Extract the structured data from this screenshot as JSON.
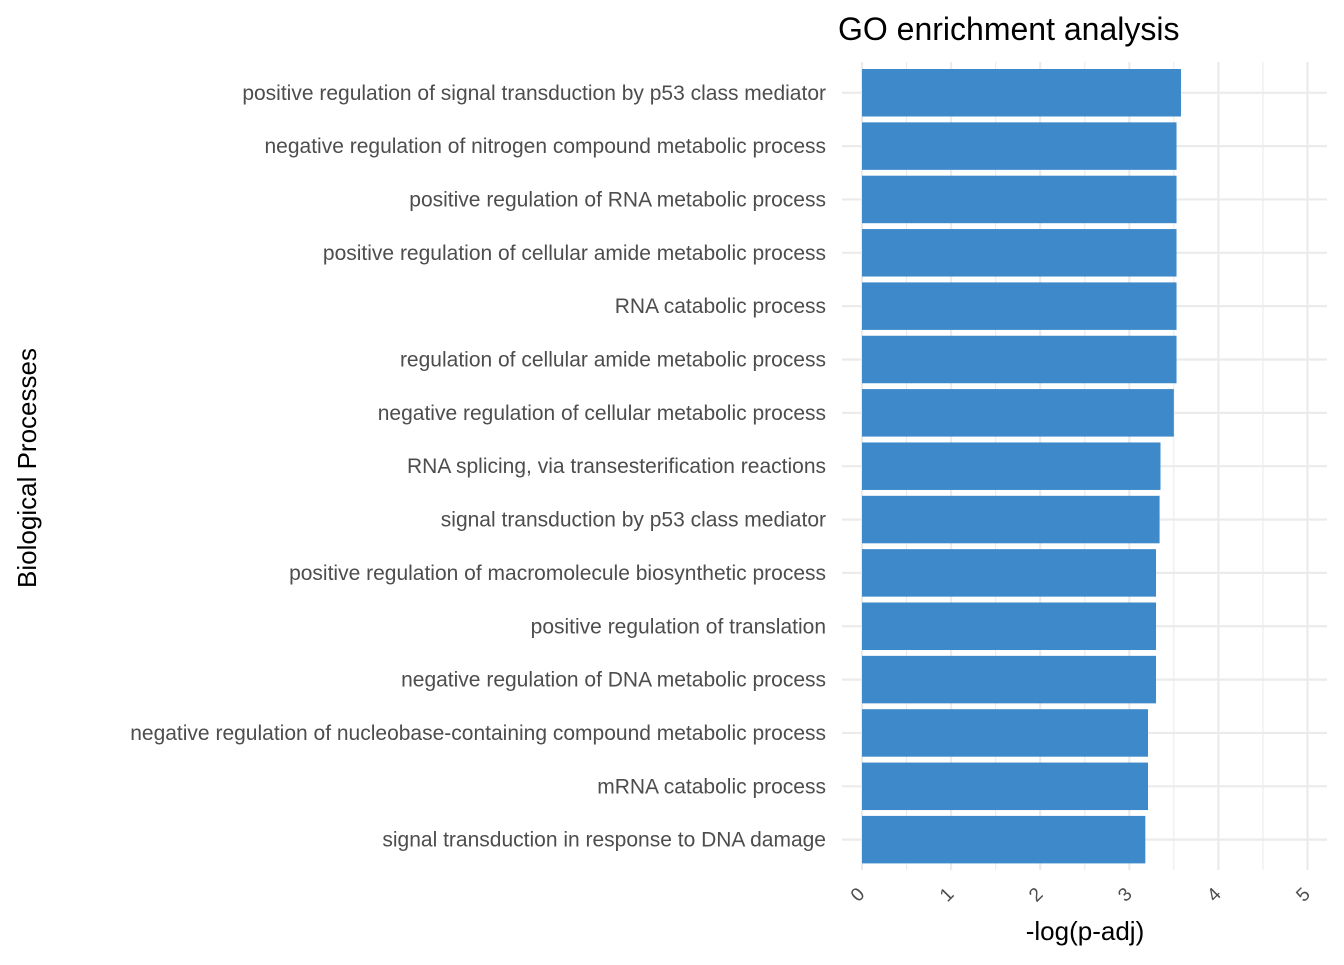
{
  "chart_data": {
    "type": "bar",
    "orientation": "horizontal",
    "title": "GO enrichment analysis",
    "xlabel": "-log(p-adj)",
    "ylabel": "Biological Processes",
    "xlim": [
      0,
      5
    ],
    "x_ticks": [
      "0",
      "1",
      "2",
      "3",
      "4",
      "5"
    ],
    "grid": true,
    "legend": "none",
    "bar_color": "#3e89c9",
    "categories": [
      "positive regulation of signal transduction by p53 class mediator",
      "negative regulation of nitrogen compound metabolic process",
      "positive regulation of RNA metabolic process",
      "positive regulation of cellular amide metabolic process",
      "RNA catabolic process",
      "regulation of cellular amide metabolic process",
      "negative regulation of cellular metabolic process",
      "RNA splicing, via transesterification reactions",
      "signal transduction by p53 class mediator",
      "positive regulation of macromolecule biosynthetic process",
      "positive regulation of translation",
      "negative regulation of DNA metabolic process",
      "negative regulation of nucleobase-containing compound metabolic process",
      "mRNA catabolic process",
      "signal transduction in response to DNA damage"
    ],
    "values": [
      3.58,
      3.53,
      3.53,
      3.53,
      3.53,
      3.53,
      3.5,
      3.35,
      3.34,
      3.3,
      3.3,
      3.3,
      3.21,
      3.21,
      3.18
    ]
  }
}
